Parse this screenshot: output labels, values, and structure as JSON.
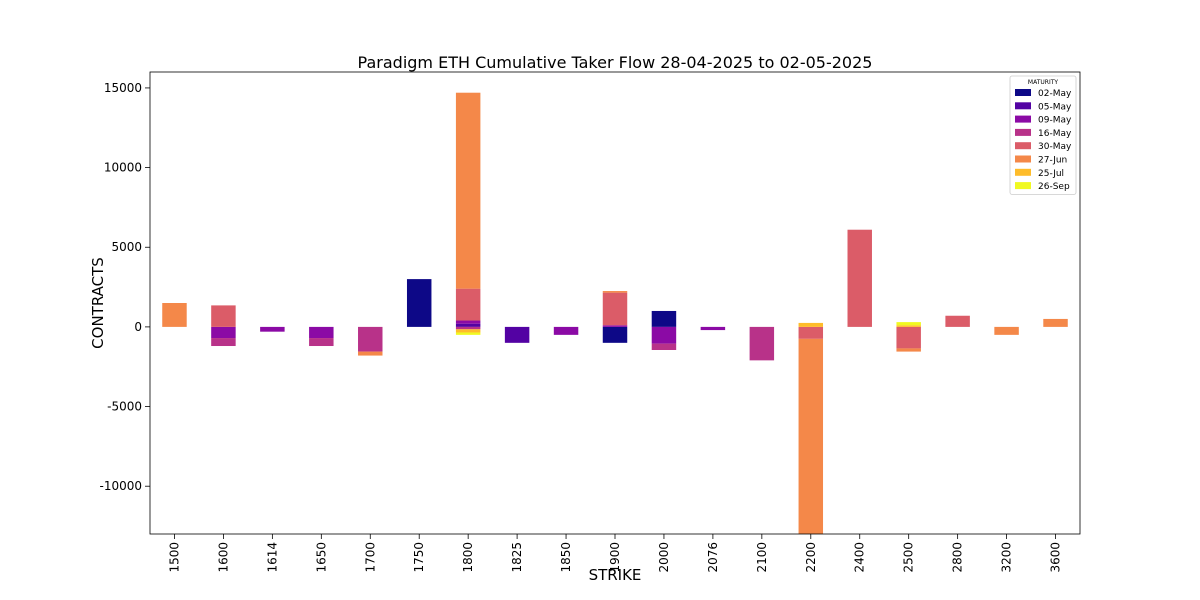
{
  "chart_data": {
    "type": "bar",
    "stacked": true,
    "title": "Paradigm ETH Cumulative Taker Flow 28-04-2025 to 02-05-2025",
    "xlabel": "STRIKE",
    "ylabel": "CONTRACTS",
    "ylim": [
      -13000,
      16000
    ],
    "yticks": [
      15000,
      10000,
      5000,
      0,
      -5000,
      -10000
    ],
    "categories": [
      "1500",
      "1600",
      "1614",
      "1650",
      "1700",
      "1750",
      "1800",
      "1825",
      "1850",
      "1900",
      "2000",
      "2076",
      "2100",
      "2200",
      "2400",
      "2500",
      "2800",
      "3200",
      "3600"
    ],
    "legend": {
      "title": "MATURITY",
      "position": "top-right"
    },
    "grid": false,
    "series": [
      {
        "name": "02-May",
        "color": "#0d0887",
        "values": [
          0,
          0,
          0,
          0,
          0,
          3000,
          0,
          0,
          0,
          -1000,
          1000,
          0,
          0,
          0,
          0,
          0,
          0,
          0,
          0
        ]
      },
      {
        "name": "05-May",
        "color": "#5302a3",
        "values": [
          0,
          0,
          0,
          0,
          0,
          0,
          200,
          -1000,
          0,
          0,
          0,
          0,
          0,
          0,
          0,
          0,
          0,
          0,
          0
        ]
      },
      {
        "name": "09-May",
        "color": "#8b0aa5",
        "values": [
          0,
          -700,
          -300,
          -700,
          0,
          0,
          200,
          0,
          -500,
          100,
          -1050,
          -200,
          0,
          0,
          0,
          0,
          0,
          0,
          0
        ]
      },
      {
        "name": "16-May",
        "color": "#b83289",
        "values": [
          0,
          -500,
          0,
          -500,
          -1550,
          0,
          -150,
          0,
          0,
          0,
          -400,
          0,
          -2100,
          0,
          0,
          0,
          0,
          0,
          0
        ]
      },
      {
        "name": "30-May",
        "color": "#db5c68",
        "values": [
          0,
          1350,
          0,
          0,
          0,
          0,
          2000,
          0,
          0,
          2050,
          0,
          0,
          0,
          -750,
          6100,
          -1350,
          700,
          0,
          0
        ]
      },
      {
        "name": "27-Jun",
        "color": "#f48849",
        "values": [
          1500,
          0,
          0,
          0,
          -250,
          0,
          12300,
          0,
          0,
          100,
          0,
          0,
          0,
          -12500,
          0,
          -200,
          0,
          -500,
          500
        ]
      },
      {
        "name": "25-Jul",
        "color": "#febc2a",
        "values": [
          0,
          0,
          0,
          0,
          0,
          0,
          -200,
          0,
          0,
          0,
          0,
          0,
          0,
          250,
          0,
          100,
          0,
          0,
          0
        ]
      },
      {
        "name": "26-Sep",
        "color": "#f0f921",
        "values": [
          0,
          0,
          0,
          0,
          0,
          0,
          -150,
          0,
          0,
          0,
          0,
          0,
          0,
          0,
          0,
          200,
          0,
          0,
          0
        ]
      }
    ]
  }
}
